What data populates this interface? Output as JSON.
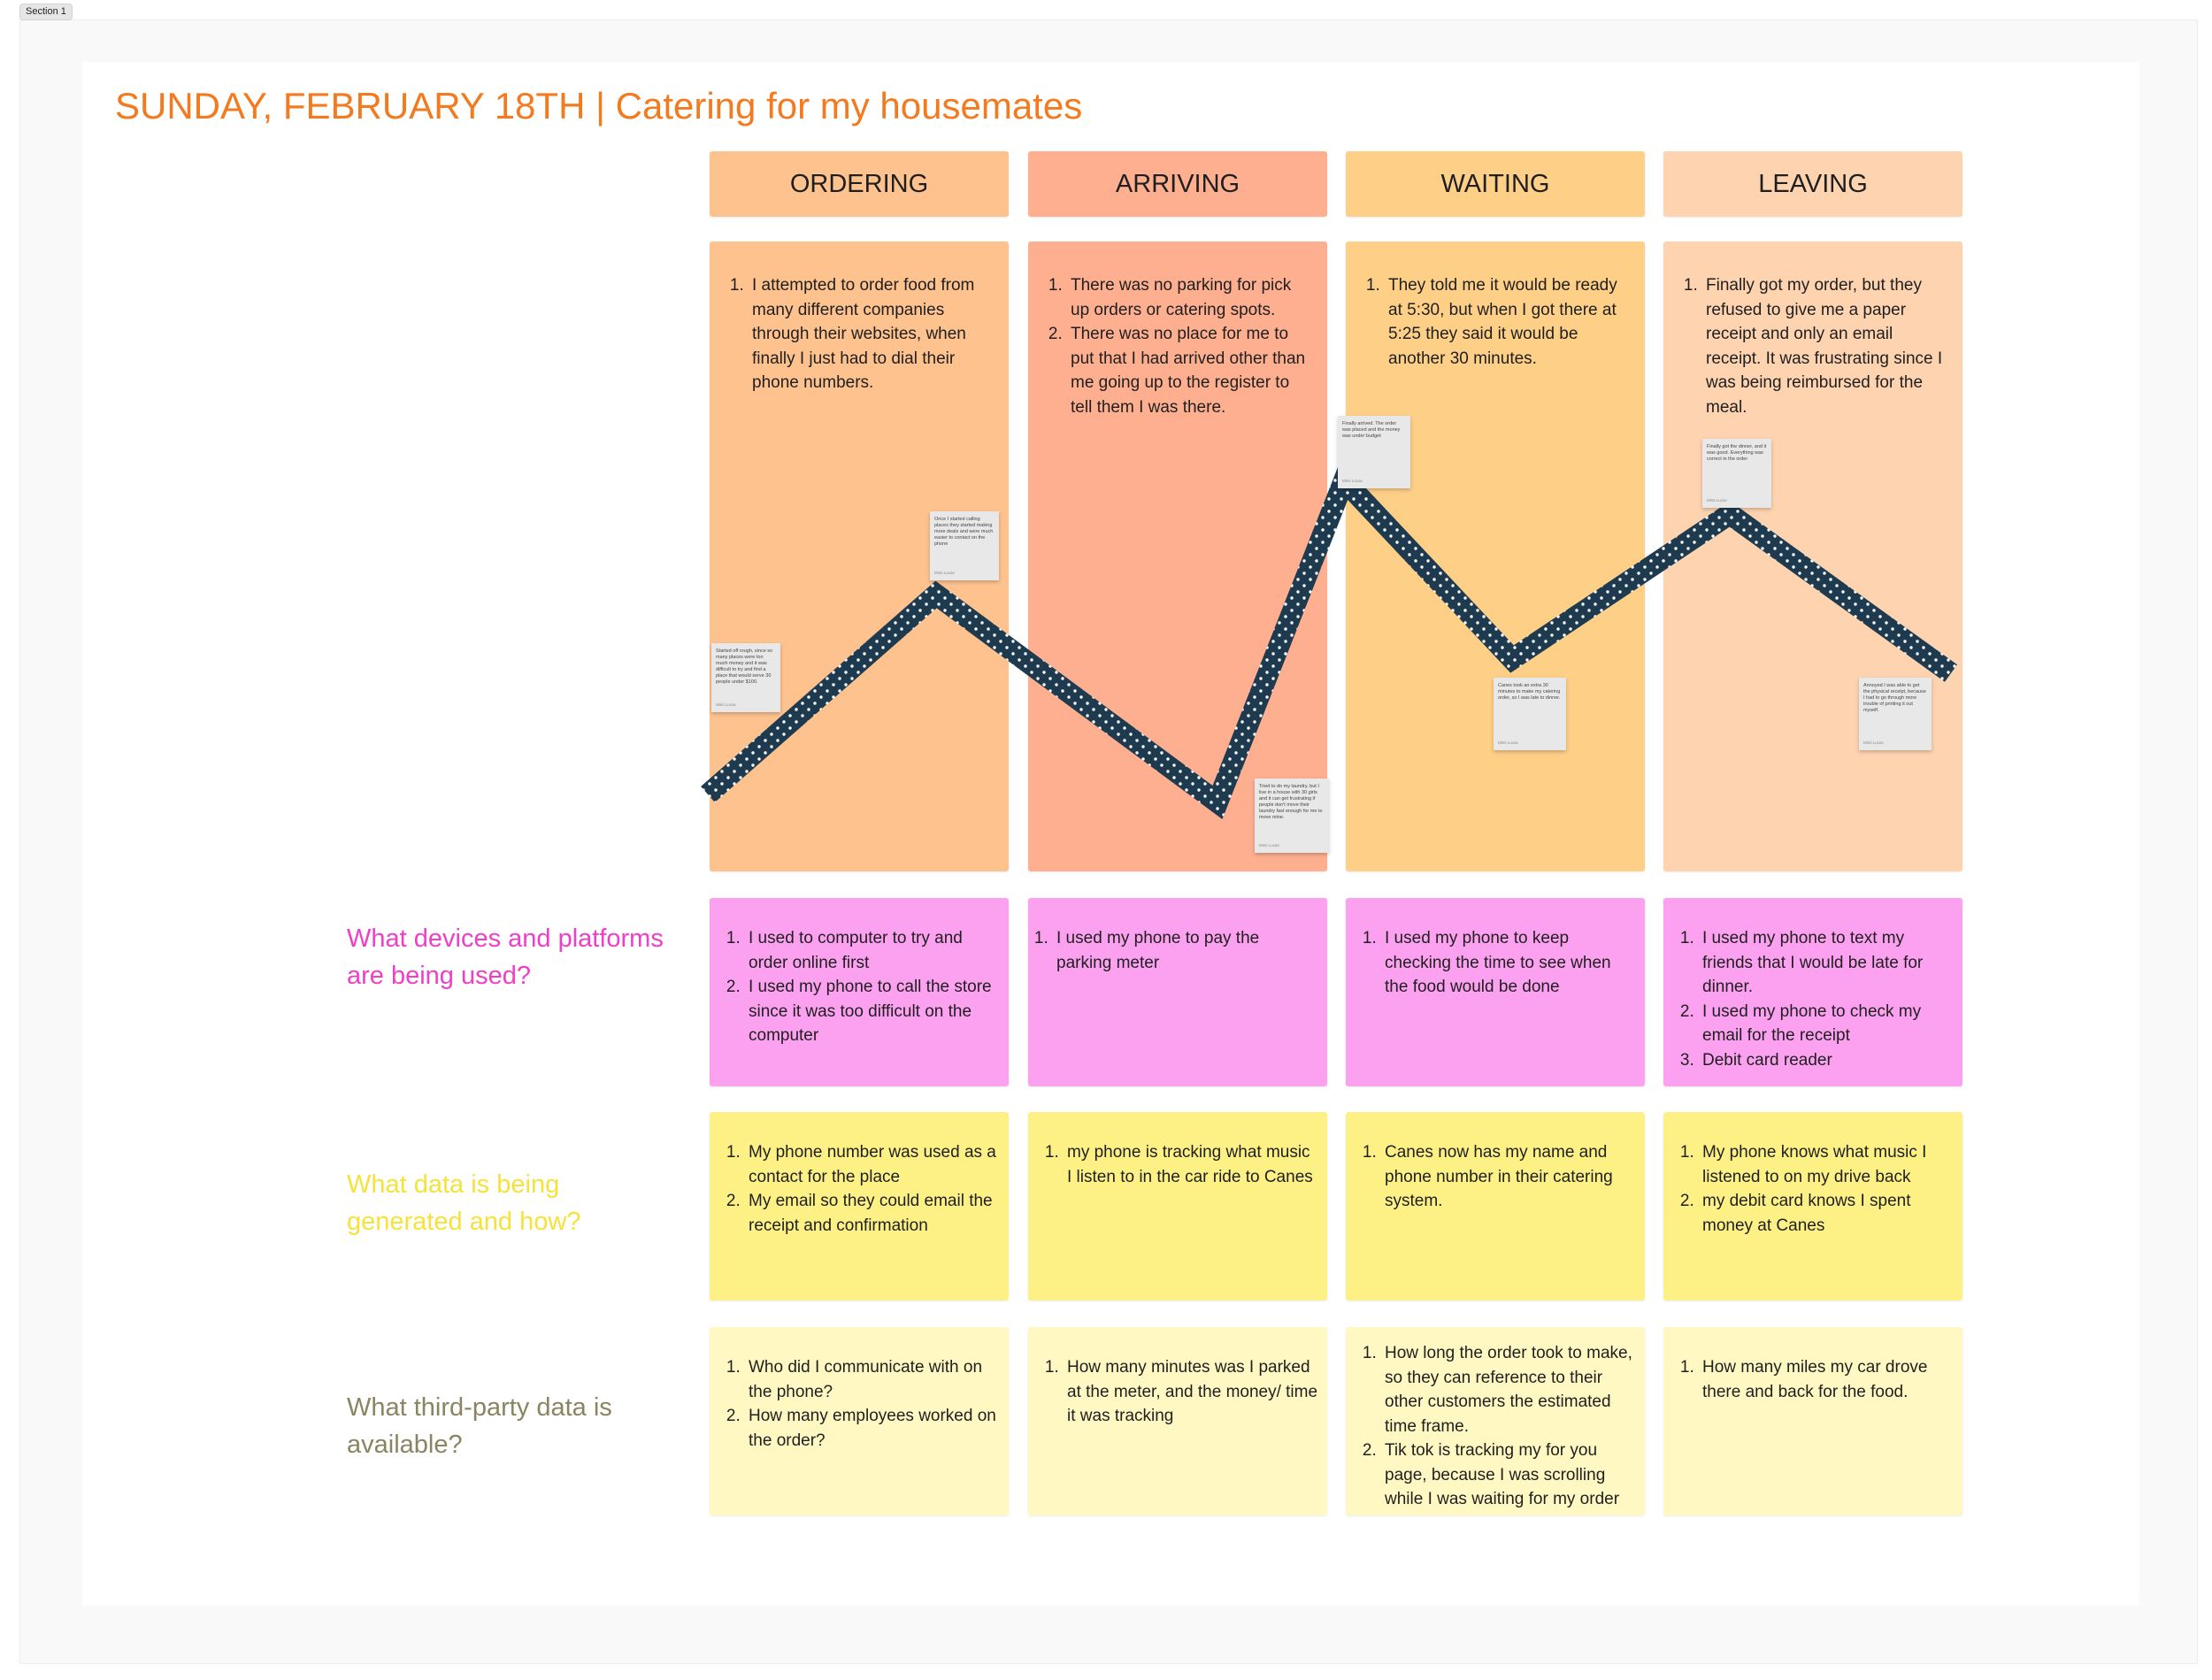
{
  "section": {
    "tag": "Section 1"
  },
  "title": "SUNDAY, FEBRUARY 18TH | Catering for my housemates",
  "colors": {
    "title": "#f47a1f",
    "ordering": "#fec28e",
    "arriving": "#fdaf90",
    "waiting": "#fecf87",
    "leaving": "#fed3b0",
    "devices": "#fca0f0",
    "data": "#fdf186",
    "third_party": "#fff8c2",
    "curve": "#1e3a4f"
  },
  "stages": [
    {
      "name": "ORDERING",
      "story": [
        "I attempted to order food from many different companies through their websites, when finally I just had to dial their phone numbers."
      ]
    },
    {
      "name": "ARRIVING",
      "story": [
        "There was no parking for pick up orders or catering spots.",
        "There was no place for me to put that I had arrived other than me going up to the register to tell them I was there."
      ]
    },
    {
      "name": "WAITING",
      "story": [
        "They told me it would be ready at 5:30, but when I got there at 5:25 they said it would be another 30 minutes."
      ]
    },
    {
      "name": "LEAVING",
      "story": [
        "Finally got my order, but they refused to give me a paper receipt and only an email receipt. It was frustrating since I was being reimbursed for the meal."
      ]
    }
  ],
  "rows": {
    "devices": {
      "label": "What devices and platforms are being used?",
      "cells": [
        [
          "I used to computer to try and order online first",
          "I used my phone to call the store since it was too difficult on the computer"
        ],
        [
          "I used my phone to pay the parking meter"
        ],
        [
          "I used my phone to keep checking the time to see when the food would be done"
        ],
        [
          "I used my phone to text my friends that I would be late for dinner.",
          "I used my phone to check my email for the receipt",
          "Debit card reader"
        ]
      ]
    },
    "data": {
      "label": "What data is being generated and how?",
      "cells": [
        [
          "My phone number was used as a contact for the place",
          "My email so they could email the receipt and confirmation"
        ],
        [
          "my phone is tracking what music I listen to in the car ride to Canes"
        ],
        [
          "Canes now has my name and phone number in their catering system."
        ],
        [
          "My phone knows what music I listened to on my drive back",
          "my debit card knows I spent money at Canes"
        ]
      ]
    },
    "third_party": {
      "label": "What third-party data is available?",
      "cells": [
        [
          "Who did I communicate with on the phone?",
          "How many employees worked on the order?"
        ],
        [
          "How many minutes was I parked at the meter, and the money/ time it was tracking"
        ],
        [
          "How long the order took to make, so they can reference to their other customers the estimated time frame.",
          "Tik tok is tracking my for you page, because I was scrolling while I was waiting for my order"
        ],
        [
          "How many miles my car drove there and back for the food."
        ]
      ]
    }
  },
  "notes": [
    {
      "text": "Started off rough, since so many places were too much money and it was difficult to try and find a place that would serve 30 people under $100.",
      "author": "Mimi Lucas"
    },
    {
      "text": "Once I started calling places they started making more deals and were much easier to contact on the phone",
      "author": "Mimi Lucas"
    },
    {
      "text": "Tried to do my laundry, but I live in a house with 30 girls and it can get frustrating if people don't move their laundry fast enough for me to move mine.",
      "author": "Mimi Lucas"
    },
    {
      "text": "Finally arrived. The order was placed and the money was under budget",
      "author": "Mimi Lucas"
    },
    {
      "text": "Canes took an extra 30 minutes to make my catering order, so I was late to dinner.",
      "author": "Mimi Lucas"
    },
    {
      "text": "Finally got the dinner, and it was good. Everything was correct in the order",
      "author": "Mimi Lucas"
    },
    {
      "text": "Annoyed I was able to get the physical receipt, because I had to go through more trouble of printing it out myself.",
      "author": "Mimi Lucas"
    }
  ]
}
